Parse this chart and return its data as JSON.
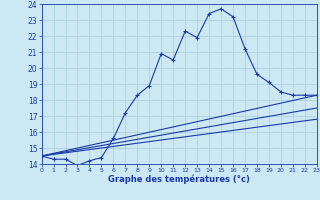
{
  "xlabel": "Graphe des températures (°c)",
  "bg_color": "#cce8f2",
  "grid_color": "#a8ccd8",
  "line_color": "#1a3aaa",
  "xlim": [
    0,
    23
  ],
  "ylim": [
    14,
    24
  ],
  "yticks": [
    14,
    15,
    16,
    17,
    18,
    19,
    20,
    21,
    22,
    23,
    24
  ],
  "xticks": [
    0,
    1,
    2,
    3,
    4,
    5,
    6,
    7,
    8,
    9,
    10,
    11,
    12,
    13,
    14,
    15,
    16,
    17,
    18,
    19,
    20,
    21,
    22,
    23
  ],
  "curve_main_x": [
    0,
    1,
    2,
    3,
    4,
    5,
    6,
    7,
    8,
    9,
    10,
    11,
    12,
    13,
    14,
    15,
    16,
    17,
    18,
    19,
    20,
    21,
    22,
    23
  ],
  "curve_main_y": [
    14.5,
    14.3,
    14.3,
    13.9,
    14.2,
    14.4,
    15.6,
    17.2,
    18.3,
    18.9,
    20.9,
    20.5,
    22.3,
    21.9,
    23.4,
    23.7,
    23.2,
    21.2,
    19.6,
    19.1,
    18.5,
    18.3,
    18.3,
    18.3
  ],
  "line1_y_end": 18.3,
  "line2_y_end": 17.5,
  "line3_y_end": 16.8,
  "line_y_start": 14.5
}
